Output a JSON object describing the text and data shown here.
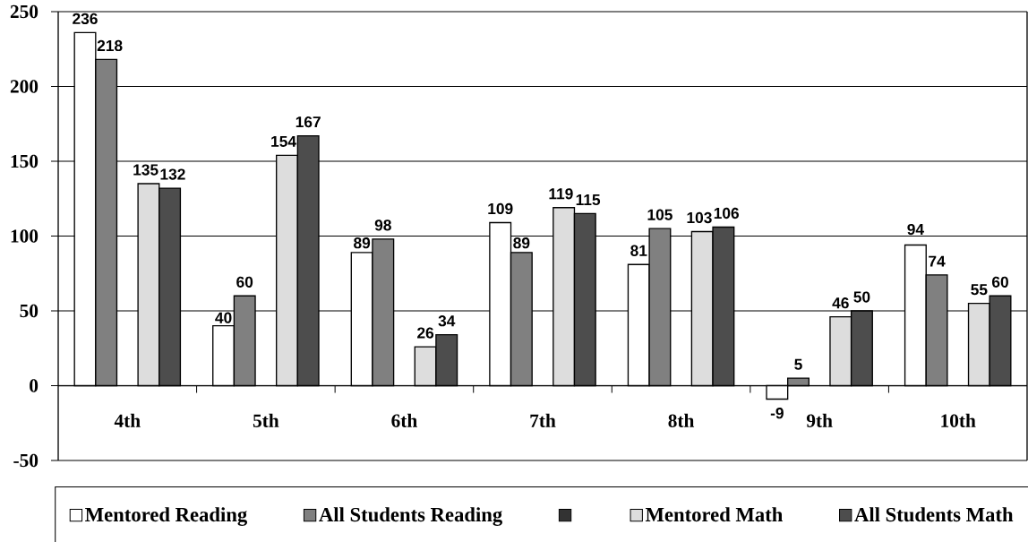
{
  "chart_data": {
    "type": "bar",
    "categories": [
      "4th",
      "5th",
      "6th",
      "7th",
      "8th",
      "9th",
      "10th"
    ],
    "series": [
      {
        "name": "Mentored Reading",
        "color": "#ffffff",
        "values": [
          236,
          40,
          89,
          109,
          81,
          -9,
          94
        ]
      },
      {
        "name": "All Students Reading",
        "color": "#808080",
        "values": [
          218,
          60,
          98,
          89,
          105,
          5,
          74
        ]
      },
      {
        "color": "#333333",
        "values": [
          null,
          null,
          null,
          null,
          null,
          null,
          null
        ]
      },
      {
        "name": "Mentored Math",
        "color": "#dddddd",
        "values": [
          135,
          154,
          26,
          119,
          103,
          46,
          55
        ]
      },
      {
        "name": "All Students Math",
        "color": "#4d4d4d",
        "values": [
          132,
          167,
          34,
          115,
          106,
          50,
          60
        ]
      }
    ],
    "ylim": [
      -50,
      250
    ],
    "yticks": [
      -50,
      0,
      50,
      100,
      150,
      200,
      250
    ],
    "grid": "y",
    "legend": "bottom",
    "data_labels": true
  }
}
